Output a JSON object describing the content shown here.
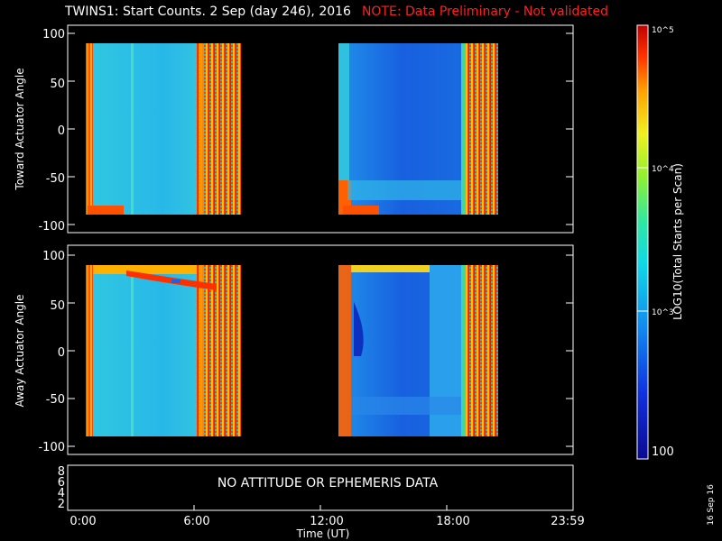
{
  "title": "TWINS1: Start Counts.  2 Sep (day 246), 2016",
  "note": "NOTE: Data Preliminary - Not validated",
  "bottom_message": "NO ATTITUDE OR EPHEMERIS DATA",
  "date_stamp": "16 Sep 16",
  "colorbar": {
    "label": "LOG10(Total Starts per Scan)",
    "ticks": [
      "100",
      "10^3",
      "10^4",
      "10^5"
    ]
  },
  "chart_data": [
    {
      "type": "heatmap",
      "panel": "top",
      "ylabel": "Toward Actuator Angle",
      "ylim": [
        -110,
        110
      ],
      "yticks": [
        "100",
        "50",
        "0",
        "-50",
        "-100"
      ],
      "data_blocks": [
        {
          "start": "0:25",
          "end": "7:50",
          "angle_range": [
            -90,
            90
          ]
        },
        {
          "start": "12:50",
          "end": "19:50",
          "angle_range": [
            -90,
            90
          ]
        }
      ]
    },
    {
      "type": "heatmap",
      "panel": "middle",
      "ylabel": "Away Actuator Angle",
      "ylim": [
        -110,
        110
      ],
      "yticks": [
        "100",
        "50",
        "0",
        "-50",
        "-100"
      ],
      "data_blocks": [
        {
          "start": "0:25",
          "end": "7:50",
          "angle_range": [
            -90,
            90
          ]
        },
        {
          "start": "12:50",
          "end": "19:50",
          "angle_range": [
            -90,
            90
          ]
        }
      ]
    },
    {
      "type": "line",
      "panel": "bottom",
      "yticks": [
        "8",
        "6",
        "4",
        "2"
      ],
      "xlabel": "Time (UT)",
      "xticks": [
        "0:00",
        "6:00",
        "12:00",
        "18:00",
        "23:59"
      ]
    }
  ],
  "colors": {
    "background": "#000000",
    "note": "#ff2020",
    "low": "#1a3cd8",
    "mid": "#20c8e8",
    "high": "#ff3000"
  }
}
